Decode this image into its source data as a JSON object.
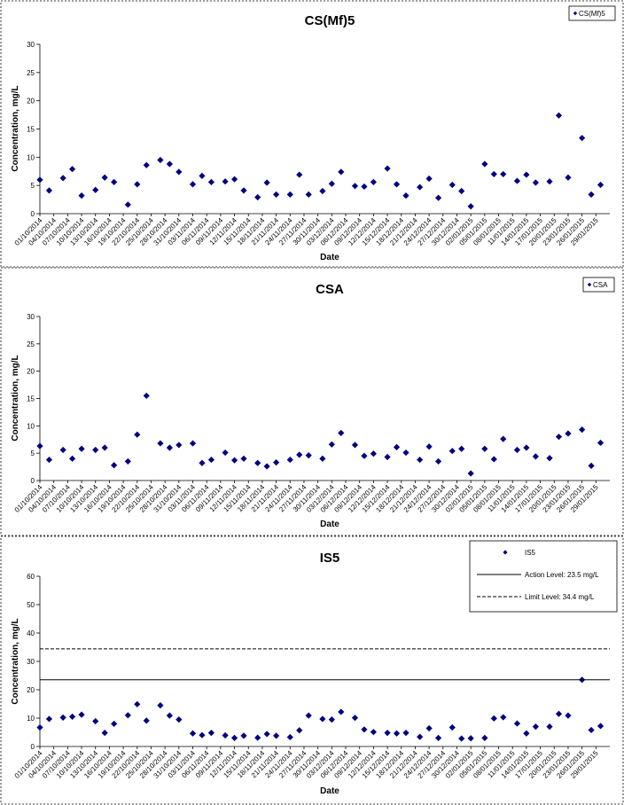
{
  "chart_data": [
    {
      "type": "scatter",
      "title": "CS(Mf)5",
      "xlabel": "Date",
      "ylabel": "Concentration, mg/L",
      "ylim": [
        0,
        30
      ],
      "yticks": [
        0,
        5,
        10,
        15,
        20,
        25,
        30
      ],
      "xtick_labels": [
        "01/10/2014",
        "04/10/2014",
        "07/10/2014",
        "10/10/2014",
        "13/10/2014",
        "16/10/2014",
        "19/10/2014",
        "22/10/2014",
        "25/10/2014",
        "28/10/2014",
        "31/10/2014",
        "03/11/2014",
        "06/11/2014",
        "09/11/2014",
        "12/11/2014",
        "15/11/2014",
        "18/11/2014",
        "21/11/2014",
        "24/11/2014",
        "27/11/2014",
        "30/11/2014",
        "03/12/2014",
        "06/12/2014",
        "09/12/2014",
        "12/12/2014",
        "15/12/2014",
        "18/12/2014",
        "21/12/2014",
        "24/12/2014",
        "27/12/2014",
        "30/12/2014",
        "02/01/2015",
        "05/01/2015",
        "08/01/2015",
        "11/01/2015",
        "14/01/2015",
        "17/01/2015",
        "20/01/2015",
        "23/01/2015",
        "26/01/2015",
        "29/01/2015"
      ],
      "legend_position": "top-right",
      "series": [
        {
          "name": "CS(Mf)5",
          "color": "#000080",
          "marker": "diamond",
          "x": [
            "01/10/2014",
            "03/10/2014",
            "06/10/2014",
            "08/10/2014",
            "10/10/2014",
            "13/10/2014",
            "15/10/2014",
            "17/10/2014",
            "20/10/2014",
            "22/10/2014",
            "24/10/2014",
            "27/10/2014",
            "29/10/2014",
            "31/10/2014",
            "03/11/2014",
            "05/11/2014",
            "07/11/2014",
            "10/11/2014",
            "12/11/2014",
            "14/11/2014",
            "17/11/2014",
            "19/11/2014",
            "21/11/2014",
            "24/11/2014",
            "26/11/2014",
            "28/11/2014",
            "01/12/2014",
            "03/12/2014",
            "05/12/2014",
            "08/12/2014",
            "10/12/2014",
            "12/12/2014",
            "15/12/2014",
            "17/12/2014",
            "19/12/2014",
            "22/12/2014",
            "24/12/2014",
            "26/12/2014",
            "29/12/2014",
            "31/12/2014",
            "02/01/2015",
            "05/01/2015",
            "07/01/2015",
            "09/01/2015",
            "12/01/2015",
            "14/01/2015",
            "16/01/2015",
            "19/01/2015",
            "21/01/2015",
            "23/01/2015",
            "26/01/2015",
            "28/01/2015",
            "30/01/2015"
          ],
          "y": [
            6.0,
            4.1,
            6.3,
            7.9,
            3.2,
            4.2,
            6.4,
            5.6,
            1.6,
            5.2,
            8.6,
            9.5,
            8.8,
            7.4,
            5.2,
            6.7,
            5.6,
            5.7,
            6.1,
            4.1,
            2.9,
            5.5,
            3.4,
            3.4,
            6.9,
            3.4,
            4.0,
            5.3,
            7.4,
            4.9,
            4.8,
            5.6,
            8.0,
            5.2,
            3.2,
            4.7,
            6.2,
            2.8,
            5.1,
            4.0,
            1.3,
            8.8,
            7.0,
            7.0,
            5.8,
            6.9,
            5.5,
            5.7,
            17.4,
            6.4,
            13.4,
            3.4,
            5.1
          ]
        }
      ]
    },
    {
      "type": "scatter",
      "title": "CSA",
      "xlabel": "Date",
      "ylabel": "Concentration, mg/L",
      "ylim": [
        0,
        30
      ],
      "yticks": [
        0,
        5,
        10,
        15,
        20,
        25,
        30
      ],
      "xtick_labels": [
        "01/10/2014",
        "04/10/2014",
        "07/10/2014",
        "10/10/2014",
        "13/10/2014",
        "16/10/2014",
        "19/10/2014",
        "22/10/2014",
        "25/10/2014",
        "28/10/2014",
        "31/10/2014",
        "03/11/2014",
        "06/11/2014",
        "09/11/2014",
        "12/11/2014",
        "15/11/2014",
        "18/11/2014",
        "21/11/2014",
        "24/11/2014",
        "27/11/2014",
        "30/11/2014",
        "03/12/2014",
        "06/12/2014",
        "09/12/2014",
        "12/12/2014",
        "15/12/2014",
        "18/12/2014",
        "21/12/2014",
        "24/12/2014",
        "27/12/2014",
        "30/12/2014",
        "02/01/2015",
        "05/01/2015",
        "08/01/2015",
        "11/01/2015",
        "14/01/2015",
        "17/01/2015",
        "20/01/2015",
        "23/01/2015",
        "26/01/2015",
        "29/01/2015"
      ],
      "legend_position": "top-right",
      "series": [
        {
          "name": "CSA",
          "color": "#000080",
          "marker": "diamond",
          "x": [
            "01/10/2014",
            "03/10/2014",
            "06/10/2014",
            "08/10/2014",
            "10/10/2014",
            "13/10/2014",
            "15/10/2014",
            "17/10/2014",
            "20/10/2014",
            "22/10/2014",
            "24/10/2014",
            "27/10/2014",
            "29/10/2014",
            "31/10/2014",
            "03/11/2014",
            "05/11/2014",
            "07/11/2014",
            "10/11/2014",
            "12/11/2014",
            "14/11/2014",
            "17/11/2014",
            "19/11/2014",
            "21/11/2014",
            "24/11/2014",
            "26/11/2014",
            "28/11/2014",
            "01/12/2014",
            "03/12/2014",
            "05/12/2014",
            "08/12/2014",
            "10/12/2014",
            "12/12/2014",
            "15/12/2014",
            "17/12/2014",
            "19/12/2014",
            "22/12/2014",
            "24/12/2014",
            "26/12/2014",
            "29/12/2014",
            "31/12/2014",
            "02/01/2015",
            "05/01/2015",
            "07/01/2015",
            "09/01/2015",
            "12/01/2015",
            "14/01/2015",
            "16/01/2015",
            "19/01/2015",
            "21/01/2015",
            "23/01/2015",
            "26/01/2015",
            "28/01/2015",
            "30/01/2015"
          ],
          "y": [
            6.3,
            3.8,
            5.6,
            4.0,
            5.8,
            5.6,
            6.0,
            2.8,
            3.5,
            8.4,
            15.5,
            6.8,
            6.0,
            6.5,
            6.8,
            3.2,
            3.8,
            5.1,
            3.7,
            4.0,
            3.2,
            2.6,
            3.3,
            3.8,
            4.7,
            4.6,
            4.0,
            6.6,
            8.7,
            6.5,
            4.5,
            4.9,
            4.3,
            6.1,
            5.1,
            3.8,
            6.2,
            3.5,
            5.4,
            5.8,
            1.3,
            5.8,
            3.9,
            7.6,
            5.6,
            6.0,
            4.4,
            4.1,
            8.0,
            8.6,
            9.3,
            2.7,
            6.9
          ]
        }
      ]
    },
    {
      "type": "scatter",
      "title": "IS5",
      "xlabel": "Date",
      "ylabel": "Concentration, mg/L",
      "ylim": [
        0,
        60
      ],
      "yticks": [
        0,
        10,
        20,
        30,
        40,
        50,
        60
      ],
      "xtick_labels": [
        "01/10/2014",
        "04/10/2014",
        "07/10/2014",
        "10/10/2014",
        "13/10/2014",
        "16/10/2014",
        "19/10/2014",
        "22/10/2014",
        "25/10/2014",
        "28/10/2014",
        "31/10/2014",
        "03/11/2014",
        "06/11/2014",
        "09/11/2014",
        "12/11/2014",
        "15/11/2014",
        "18/11/2014",
        "21/11/2014",
        "24/11/2014",
        "27/11/2014",
        "30/11/2014",
        "03/12/2014",
        "06/12/2014",
        "09/12/2014",
        "12/12/2014",
        "15/12/2014",
        "18/12/2014",
        "21/12/2014",
        "24/12/2014",
        "27/12/2014",
        "30/12/2014",
        "02/01/2015",
        "05/01/2015",
        "08/01/2015",
        "11/01/2015",
        "14/01/2015",
        "17/01/2015",
        "20/01/2015",
        "23/01/2015",
        "26/01/2015",
        "29/01/2015"
      ],
      "legend_position": "top-right",
      "series": [
        {
          "name": "IS5",
          "color": "#000080",
          "marker": "diamond",
          "x": [
            "01/10/2014",
            "03/10/2014",
            "06/10/2014",
            "08/10/2014",
            "10/10/2014",
            "13/10/2014",
            "15/10/2014",
            "17/10/2014",
            "20/10/2014",
            "22/10/2014",
            "24/10/2014",
            "27/10/2014",
            "29/10/2014",
            "31/10/2014",
            "03/11/2014",
            "05/11/2014",
            "07/11/2014",
            "10/11/2014",
            "12/11/2014",
            "14/11/2014",
            "17/11/2014",
            "19/11/2014",
            "21/11/2014",
            "24/11/2014",
            "26/11/2014",
            "28/11/2014",
            "01/12/2014",
            "03/12/2014",
            "05/12/2014",
            "08/12/2014",
            "10/12/2014",
            "12/12/2014",
            "15/12/2014",
            "17/12/2014",
            "19/12/2014",
            "22/12/2014",
            "24/12/2014",
            "26/12/2014",
            "29/12/2014",
            "31/12/2014",
            "02/01/2015",
            "05/01/2015",
            "07/01/2015",
            "09/01/2015",
            "12/01/2015",
            "14/01/2015",
            "16/01/2015",
            "19/01/2015",
            "21/01/2015",
            "23/01/2015",
            "26/01/2015",
            "28/01/2015",
            "30/01/2015"
          ],
          "y": [
            6.7,
            9.7,
            10.2,
            10.5,
            11.2,
            8.9,
            4.8,
            8.0,
            11.0,
            14.9,
            9.1,
            14.5,
            10.9,
            9.5,
            4.6,
            4.0,
            4.8,
            3.9,
            3.0,
            3.8,
            3.1,
            4.4,
            3.8,
            3.3,
            5.7,
            10.9,
            9.7,
            9.5,
            12.2,
            10.1,
            6.0,
            5.1,
            4.8,
            4.6,
            4.8,
            3.4,
            6.4,
            3.0,
            6.7,
            2.8,
            2.9,
            3.0,
            9.9,
            10.3,
            8.1,
            4.6,
            7.0,
            7.0,
            11.5,
            10.9,
            23.5,
            5.8,
            7.2
          ]
        },
        {
          "name": "Action Level: 23.5 mg/L",
          "type": "hline",
          "value": 23.5,
          "color": "#000000",
          "dash": "solid"
        },
        {
          "name": "Limit Level: 34.4 mg/L",
          "type": "hline",
          "value": 34.4,
          "color": "#000000",
          "dash": "dashed"
        }
      ]
    }
  ]
}
